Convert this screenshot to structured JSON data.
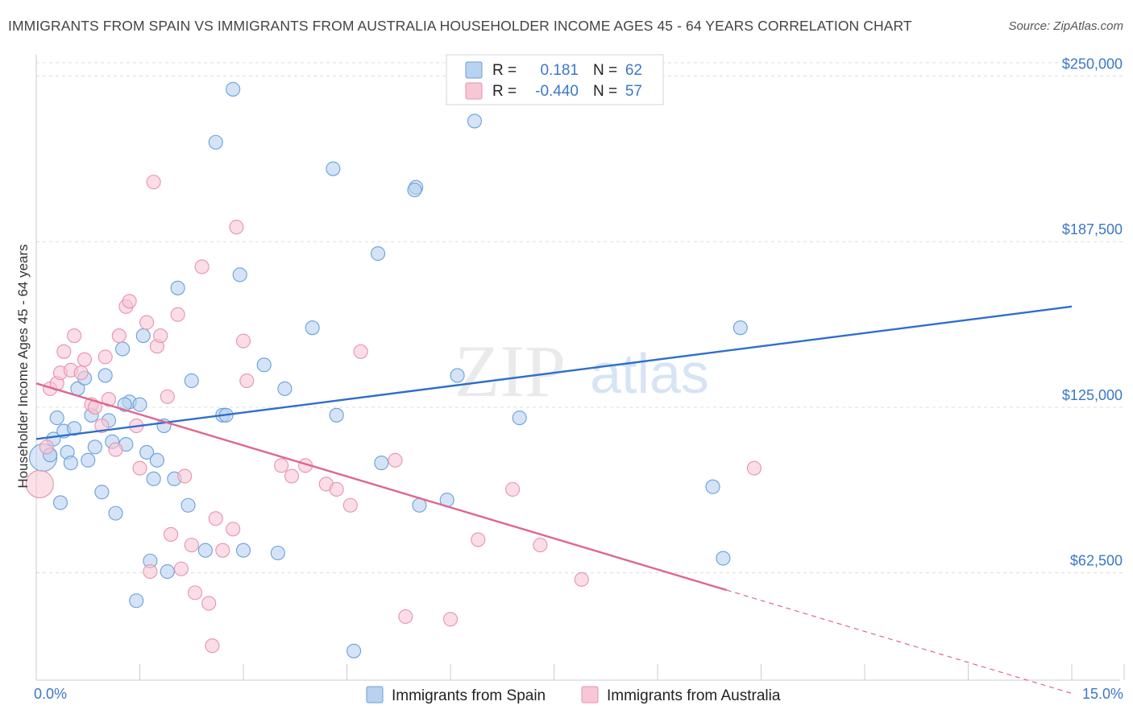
{
  "title": "IMMIGRANTS FROM SPAIN VS IMMIGRANTS FROM AUSTRALIA HOUSEHOLDER INCOME AGES 45 - 64 YEARS CORRELATION CHART",
  "source": "Source: ZipAtlas.com",
  "watermark": {
    "zip": "ZIP",
    "atlas": "atlas"
  },
  "colors": {
    "spain": "#6a9fdc",
    "spain_fill": "#b8d2f0",
    "spain_line": "#2e6fcb",
    "australia": "#e992ae",
    "australia_fill": "#f7c7d6",
    "australia_line": "#e0668f",
    "grid": "#dcdcdc",
    "tick_label": "#3b78c8"
  },
  "legend": {
    "r_label": "R =",
    "n_label": "N =",
    "spain": {
      "r": "0.181",
      "n": "62"
    },
    "australia": {
      "r": "-0.440",
      "n": "57"
    }
  },
  "chart_data": {
    "type": "scatter",
    "title": "IMMIGRANTS FROM SPAIN VS IMMIGRANTS FROM AUSTRALIA HOUSEHOLDER INCOME AGES 45 - 64 YEARS CORRELATION CHART",
    "xlabel": "",
    "ylabel": "Householder Income Ages 45 - 64 years",
    "xlim": [
      0,
      15
    ],
    "ylim": [
      22000,
      255000
    ],
    "x_tick_labels": [
      "0.0%",
      "15.0%"
    ],
    "y_ticks": [
      62500,
      125000,
      187500,
      250000
    ],
    "y_tick_labels": [
      "$62,500",
      "$125,000",
      "$187,500",
      "$250,000"
    ],
    "grid": true,
    "legend_placement": "top-center",
    "series": [
      {
        "name": "Immigrants from Spain",
        "key": "spain",
        "trend": {
          "x": [
            0.0,
            15.0
          ],
          "y": [
            113000,
            163000
          ],
          "dashed_to": null
        },
        "points": [
          {
            "x": 0.1,
            "y": 106000,
            "big": true
          },
          {
            "x": 0.25,
            "y": 113000
          },
          {
            "x": 0.3,
            "y": 121000
          },
          {
            "x": 0.35,
            "y": 89000
          },
          {
            "x": 0.4,
            "y": 116000
          },
          {
            "x": 0.45,
            "y": 108000
          },
          {
            "x": 0.5,
            "y": 104000
          },
          {
            "x": 0.55,
            "y": 117000
          },
          {
            "x": 0.6,
            "y": 132000
          },
          {
            "x": 0.7,
            "y": 136000
          },
          {
            "x": 0.75,
            "y": 105000
          },
          {
            "x": 0.8,
            "y": 122000
          },
          {
            "x": 0.85,
            "y": 110000
          },
          {
            "x": 0.95,
            "y": 93000
          },
          {
            "x": 1.0,
            "y": 137000
          },
          {
            "x": 1.05,
            "y": 120000
          },
          {
            "x": 1.1,
            "y": 112000
          },
          {
            "x": 1.15,
            "y": 85000
          },
          {
            "x": 1.25,
            "y": 147000
          },
          {
            "x": 1.3,
            "y": 111000
          },
          {
            "x": 1.35,
            "y": 127000
          },
          {
            "x": 1.45,
            "y": 52000
          },
          {
            "x": 1.5,
            "y": 126000
          },
          {
            "x": 1.55,
            "y": 152000
          },
          {
            "x": 1.6,
            "y": 108000
          },
          {
            "x": 1.65,
            "y": 67000
          },
          {
            "x": 1.7,
            "y": 98000
          },
          {
            "x": 1.75,
            "y": 105000
          },
          {
            "x": 1.85,
            "y": 118000
          },
          {
            "x": 1.9,
            "y": 63000
          },
          {
            "x": 2.0,
            "y": 98000
          },
          {
            "x": 2.05,
            "y": 170000
          },
          {
            "x": 2.2,
            "y": 88000
          },
          {
            "x": 2.25,
            "y": 135000
          },
          {
            "x": 2.45,
            "y": 71000
          },
          {
            "x": 2.6,
            "y": 225000
          },
          {
            "x": 2.7,
            "y": 122000
          },
          {
            "x": 2.85,
            "y": 245000
          },
          {
            "x": 2.95,
            "y": 175000
          },
          {
            "x": 3.0,
            "y": 71000
          },
          {
            "x": 3.3,
            "y": 141000
          },
          {
            "x": 3.5,
            "y": 70000
          },
          {
            "x": 3.6,
            "y": 132000
          },
          {
            "x": 4.0,
            "y": 155000
          },
          {
            "x": 4.3,
            "y": 215000
          },
          {
            "x": 4.35,
            "y": 122000
          },
          {
            "x": 4.6,
            "y": 33000
          },
          {
            "x": 4.95,
            "y": 183000
          },
          {
            "x": 5.0,
            "y": 104000
          },
          {
            "x": 5.5,
            "y": 208000
          },
          {
            "x": 5.55,
            "y": 88000
          },
          {
            "x": 5.95,
            "y": 90000
          },
          {
            "x": 6.1,
            "y": 137000
          },
          {
            "x": 6.35,
            "y": 233000
          },
          {
            "x": 7.0,
            "y": 121000
          },
          {
            "x": 9.8,
            "y": 95000
          },
          {
            "x": 9.95,
            "y": 68000
          },
          {
            "x": 10.2,
            "y": 155000
          },
          {
            "x": 1.28,
            "y": 126000
          },
          {
            "x": 0.2,
            "y": 107000
          },
          {
            "x": 5.48,
            "y": 207000
          },
          {
            "x": 2.75,
            "y": 122000
          }
        ]
      },
      {
        "name": "Immigrants from Australia",
        "key": "australia",
        "trend": {
          "x": [
            0.0,
            10.0
          ],
          "y": [
            134000,
            56000
          ],
          "dashed_to": {
            "x": 15.0,
            "y": 17000
          }
        },
        "points": [
          {
            "x": 0.05,
            "y": 96000,
            "big": true
          },
          {
            "x": 0.15,
            "y": 110000
          },
          {
            "x": 0.2,
            "y": 132000
          },
          {
            "x": 0.3,
            "y": 134000
          },
          {
            "x": 0.35,
            "y": 138000
          },
          {
            "x": 0.4,
            "y": 146000
          },
          {
            "x": 0.5,
            "y": 139000
          },
          {
            "x": 0.55,
            "y": 152000
          },
          {
            "x": 0.65,
            "y": 138000
          },
          {
            "x": 0.7,
            "y": 143000
          },
          {
            "x": 0.8,
            "y": 126000
          },
          {
            "x": 0.85,
            "y": 125000
          },
          {
            "x": 0.95,
            "y": 118000
          },
          {
            "x": 1.0,
            "y": 144000
          },
          {
            "x": 1.05,
            "y": 128000
          },
          {
            "x": 1.15,
            "y": 109000
          },
          {
            "x": 1.2,
            "y": 152000
          },
          {
            "x": 1.3,
            "y": 163000
          },
          {
            "x": 1.35,
            "y": 165000
          },
          {
            "x": 1.45,
            "y": 118000
          },
          {
            "x": 1.5,
            "y": 102000
          },
          {
            "x": 1.6,
            "y": 157000
          },
          {
            "x": 1.65,
            "y": 63000
          },
          {
            "x": 1.7,
            "y": 210000
          },
          {
            "x": 1.75,
            "y": 148000
          },
          {
            "x": 1.8,
            "y": 152000
          },
          {
            "x": 1.9,
            "y": 129000
          },
          {
            "x": 1.95,
            "y": 77000
          },
          {
            "x": 2.05,
            "y": 160000
          },
          {
            "x": 2.1,
            "y": 64000
          },
          {
            "x": 2.15,
            "y": 99000
          },
          {
            "x": 2.25,
            "y": 73000
          },
          {
            "x": 2.3,
            "y": 55000
          },
          {
            "x": 2.4,
            "y": 178000
          },
          {
            "x": 2.5,
            "y": 51000
          },
          {
            "x": 2.55,
            "y": 35000
          },
          {
            "x": 2.6,
            "y": 83000
          },
          {
            "x": 2.7,
            "y": 71000
          },
          {
            "x": 2.85,
            "y": 79000
          },
          {
            "x": 2.9,
            "y": 193000
          },
          {
            "x": 3.0,
            "y": 150000
          },
          {
            "x": 3.05,
            "y": 135000
          },
          {
            "x": 3.55,
            "y": 103000
          },
          {
            "x": 3.7,
            "y": 99000
          },
          {
            "x": 3.9,
            "y": 103000
          },
          {
            "x": 4.2,
            "y": 96000
          },
          {
            "x": 4.35,
            "y": 94000
          },
          {
            "x": 4.55,
            "y": 88000
          },
          {
            "x": 4.7,
            "y": 146000
          },
          {
            "x": 5.2,
            "y": 105000
          },
          {
            "x": 5.35,
            "y": 46000
          },
          {
            "x": 6.0,
            "y": 45000
          },
          {
            "x": 6.4,
            "y": 75000
          },
          {
            "x": 6.9,
            "y": 94000
          },
          {
            "x": 7.3,
            "y": 73000
          },
          {
            "x": 7.9,
            "y": 60000
          },
          {
            "x": 10.4,
            "y": 102000
          }
        ]
      }
    ]
  }
}
